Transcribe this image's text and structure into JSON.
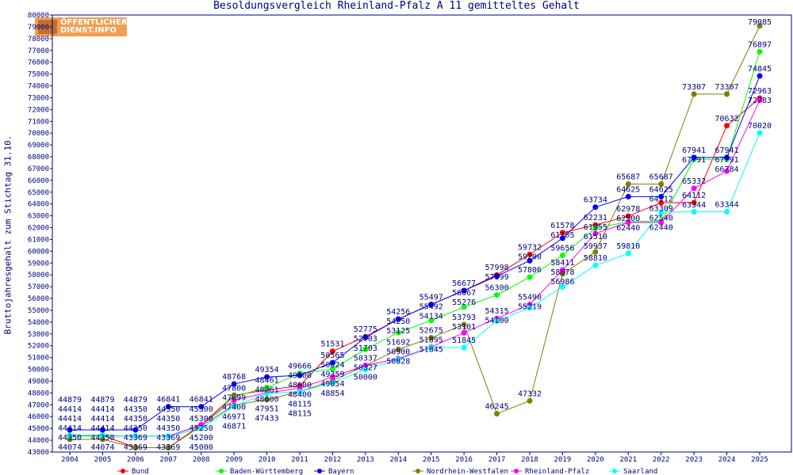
{
  "logo": {
    "line1": "ÖFFENTLICHER",
    "line2": "DIENST.INFO"
  },
  "chart_data": {
    "type": "line",
    "title": "Besoldungsvergleich Rheinland-Pfalz A 11 gemitteltes Gehalt",
    "xlabel": "",
    "ylabel": "Bruttojahresgehalt zum Stichtag 31.10.",
    "ylim": [
      43000,
      80000
    ],
    "ytick_step": 1000,
    "grid": false,
    "legend": "bottom",
    "categories": [
      "2004",
      "2005",
      "2006",
      "2007",
      "2008",
      "2009",
      "2010",
      "2011",
      "2012",
      "2013",
      "2014",
      "2015",
      "2016",
      "2017",
      "2018",
      "2019",
      "2020",
      "2021",
      "2022",
      "2023",
      "2024",
      "2025"
    ],
    "series": [
      {
        "name": "Bund",
        "color": "#ff0000",
        "values": [
          44414,
          44414,
          43369,
          43369,
          45300,
          47800,
          48261,
          48600,
          51531,
          52775,
          54256,
          55497,
          56677,
          57998,
          59732,
          61578,
          62231,
          62978,
          64112,
          64112,
          70632,
          72963
        ]
      },
      {
        "name": "Baden-Württemberg",
        "color": "#00ff00",
        "values": [
          44350,
          44350,
          44350,
          44350,
          45250,
          47699,
          48461,
          49666,
          50024,
          51703,
          53125,
          54134,
          55276,
          56300,
          57806,
          59656,
          61955,
          62500,
          62540,
          67791,
          67791,
          76897
        ]
      },
      {
        "name": "Bayern",
        "color": "#0000ff",
        "values": [
          44879,
          44879,
          44879,
          46841,
          46841,
          48768,
          49354,
          49500,
          50565,
          52703,
          54250,
          55492,
          56667,
          57899,
          59200,
          61105,
          63734,
          64625,
          64625,
          67941,
          67941,
          74845
        ]
      },
      {
        "name": "Nordrhein-Westfalen",
        "color": "#808000",
        "values": [
          44074,
          44074,
          43369,
          43369,
          45200,
          46971,
          47433,
          48115,
          49054,
          50327,
          51692,
          52675,
          53793,
          46245,
          47332,
          58078,
          59937,
          65687,
          65687,
          73307,
          73307,
          79085
        ]
      },
      {
        "name": "Rheinland-Pfalz",
        "color": "#ff00ff",
        "values": [
          44414,
          44414,
          44350,
          44350,
          45300,
          47400,
          48000,
          48400,
          49359,
          50337,
          50900,
          51895,
          53101,
          54315,
          55490,
          58411,
          61510,
          62440,
          62440,
          65332,
          66784,
          72783
        ]
      },
      {
        "name": "Saarland",
        "color": "#00ffff",
        "values": [
          44414,
          44414,
          44350,
          44350,
          45000,
          46871,
          47951,
          48115,
          48854,
          50000,
          50828,
          51845,
          51845,
          54100,
          55219,
          56986,
          58810,
          59810,
          63309,
          63344,
          63344,
          70020
        ]
      }
    ]
  }
}
